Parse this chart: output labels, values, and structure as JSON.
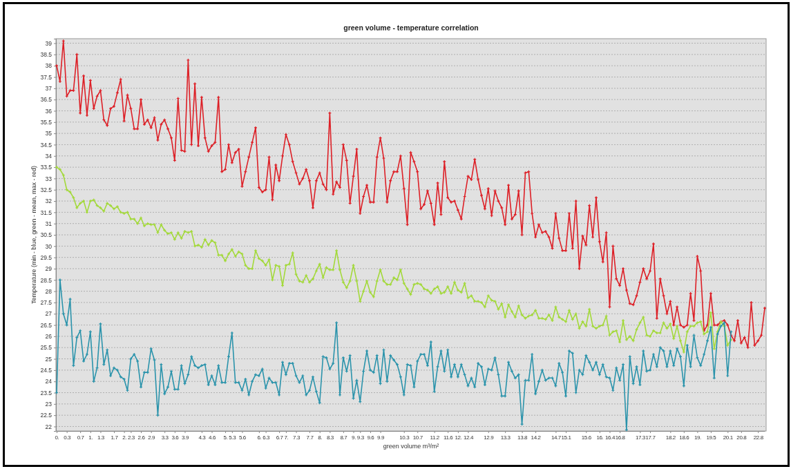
{
  "chart_data": {
    "type": "line",
    "title": "green volume - temperature correlation",
    "xlabel": "green volume m³/m²",
    "ylabel": "Temperature (min - blue, green - mean, max - red)",
    "categories": [
      "0.",
      null,
      null,
      "0.3",
      null,
      null,
      null,
      "0.7",
      null,
      null,
      "1.",
      null,
      null,
      "1.3",
      null,
      null,
      null,
      "1.7",
      null,
      null,
      "2.",
      null,
      "2.3",
      null,
      null,
      "2.6",
      null,
      null,
      "2.9",
      null,
      null,
      null,
      "3.3",
      null,
      null,
      "3.6",
      null,
      null,
      "3.9",
      null,
      null,
      null,
      null,
      "4.3",
      null,
      null,
      "4.6",
      null,
      null,
      null,
      "5.",
      null,
      "5.3",
      null,
      null,
      "5.6",
      null,
      null,
      null,
      null,
      "6.",
      null,
      "6.3",
      null,
      null,
      null,
      "6.7",
      null,
      "7.",
      null,
      null,
      "7.3",
      null,
      null,
      null,
      "7.7",
      null,
      null,
      "8.",
      null,
      null,
      "8.3",
      null,
      null,
      null,
      "8.7",
      null,
      null,
      "9.",
      null,
      "9.3",
      null,
      null,
      "9.6",
      null,
      null,
      "9.9",
      null,
      null,
      null,
      null,
      null,
      null,
      "10.3",
      null,
      null,
      null,
      "10.7",
      null,
      null,
      null,
      null,
      "11.2",
      null,
      null,
      null,
      "11.6",
      null,
      null,
      "12.",
      null,
      null,
      "12.4",
      null,
      null,
      null,
      null,
      null,
      "12.9",
      null,
      null,
      null,
      null,
      "13.3",
      null,
      null,
      null,
      null,
      "13.8",
      null,
      null,
      null,
      "14.2",
      null,
      null,
      null,
      null,
      null,
      "14.7",
      null,
      null,
      "15.1",
      null,
      null,
      null,
      null,
      null,
      "15.6",
      null,
      null,
      null,
      "16.",
      null,
      null,
      "16.4",
      null,
      null,
      "16.8",
      null,
      null,
      null,
      null,
      null,
      "17.3",
      null,
      null,
      "17.7",
      null,
      null,
      null,
      null,
      null,
      "18.2",
      null,
      null,
      null,
      "18.6",
      null,
      null,
      null,
      "19.",
      null,
      null,
      null,
      "19.5",
      null,
      null,
      null,
      null,
      "20.1",
      null,
      null,
      null,
      "20.8",
      null,
      null,
      null,
      null,
      "22.8",
      null,
      null
    ],
    "ylim": [
      21.8,
      39.2
    ],
    "yticks": [
      22,
      22.5,
      23,
      23.5,
      24,
      24.5,
      25,
      25.5,
      26,
      26.5,
      27,
      27.5,
      28,
      28.5,
      29,
      29.5,
      30,
      30.5,
      31,
      31.5,
      32,
      32.5,
      33,
      33.5,
      34,
      34.5,
      35,
      35.5,
      36,
      36.5,
      37,
      37.5,
      38,
      38.5,
      39
    ],
    "grid": "y",
    "marker": "cross",
    "line_style": "solid",
    "series": [
      {
        "color": "#dd1f26",
        "values": [
          38.0,
          37.3,
          39.1,
          36.65,
          36.9,
          36.9,
          38.5,
          35.9,
          37.55,
          35.8,
          37.35,
          36.1,
          36.65,
          36.9,
          35.6,
          35.35,
          36.1,
          36.2,
          36.8,
          37.4,
          35.55,
          36.7,
          36.1,
          35.2,
          35.2,
          36.5,
          35.4,
          35.6,
          35.25,
          35.7,
          34.7,
          35.4,
          35.6,
          35.2,
          34.8,
          33.8,
          36.55,
          34.25,
          34.2,
          38.25,
          34.5,
          37.2,
          34.45,
          36.6,
          34.8,
          34.2,
          34.45,
          34.6,
          36.6,
          33.3,
          33.4,
          34.5,
          33.7,
          34.15,
          34.3,
          32.65,
          33.3,
          33.95,
          34.6,
          35.25,
          32.6,
          32.4,
          32.5,
          33.95,
          32.05,
          33.6,
          32.9,
          34.0,
          34.95,
          34.5,
          33.75,
          33.25,
          32.75,
          33.0,
          33.4,
          32.9,
          31.7,
          32.9,
          33.25,
          32.75,
          32.5,
          35.9,
          32.3,
          32.85,
          32.6,
          34.5,
          33.8,
          31.9,
          33.1,
          34.3,
          31.45,
          32.2,
          32.7,
          31.95,
          31.95,
          33.95,
          34.8,
          33.9,
          31.95,
          32.9,
          33.3,
          33.3,
          34.0,
          32.55,
          30.95,
          34.15,
          33.75,
          33.3,
          31.65,
          31.85,
          32.45,
          31.9,
          30.95,
          32.8,
          31.4,
          33.75,
          32.15,
          31.95,
          32.0,
          31.6,
          31.2,
          32.2,
          33.1,
          32.95,
          33.85,
          32.95,
          32.25,
          31.65,
          32.55,
          31.35,
          32.45,
          32.0,
          31.7,
          30.95,
          32.7,
          31.2,
          31.4,
          32.45,
          30.5,
          33.25,
          33.3,
          31.45,
          30.4,
          30.95,
          30.6,
          30.65,
          30.4,
          29.9,
          31.45,
          30.35,
          29.8,
          29.8,
          31.45,
          29.9,
          32.0,
          29.0,
          30.45,
          30.05,
          31.8,
          30.4,
          32.15,
          30.2,
          29.3,
          30.6,
          27.3,
          30.0,
          28.55,
          28.25,
          29.0,
          28.05,
          27.45,
          27.4,
          27.8,
          28.4,
          29.0,
          28.55,
          28.9,
          30.1,
          26.8,
          28.55,
          27.8,
          27.0,
          27.55,
          26.5,
          27.3,
          26.5,
          26.4,
          26.5,
          27.9,
          26.7,
          29.55,
          28.9,
          26.25,
          26.5,
          27.9,
          26.5,
          26.5,
          26.65,
          26.7,
          26.5,
          26.05,
          25.8,
          26.7,
          25.7,
          25.95,
          25.5,
          27.5,
          25.6,
          25.8,
          26.05,
          27.25
        ]
      },
      {
        "color": "#a3d93a",
        "values": [
          33.5,
          33.4,
          33.15,
          32.5,
          32.4,
          32.15,
          31.7,
          31.9,
          32.0,
          31.5,
          32.0,
          32.05,
          31.8,
          31.7,
          31.55,
          31.9,
          31.8,
          31.65,
          31.75,
          31.5,
          31.45,
          31.5,
          31.2,
          31.2,
          31.0,
          31.25,
          30.9,
          31.0,
          30.95,
          30.95,
          30.6,
          30.95,
          30.7,
          30.55,
          30.6,
          30.3,
          30.6,
          30.35,
          30.65,
          30.6,
          30.65,
          30.0,
          30.05,
          29.95,
          30.3,
          30.05,
          30.25,
          30.15,
          29.6,
          29.6,
          29.35,
          29.65,
          29.85,
          29.55,
          29.75,
          29.65,
          29.15,
          29.0,
          29.0,
          29.8,
          29.45,
          29.35,
          29.15,
          29.4,
          28.5,
          29.15,
          29.1,
          28.25,
          29.15,
          29.2,
          29.7,
          28.75,
          28.45,
          28.4,
          28.7,
          28.4,
          28.55,
          28.9,
          29.2,
          28.6,
          29.05,
          28.95,
          28.95,
          29.8,
          28.95,
          28.4,
          28.15,
          28.45,
          29.15,
          28.45,
          27.55,
          28.0,
          28.45,
          27.95,
          27.75,
          28.45,
          28.95,
          28.45,
          28.3,
          28.3,
          28.6,
          28.5,
          28.95,
          28.35,
          28.1,
          27.85,
          28.3,
          28.35,
          28.3,
          28.1,
          28.05,
          27.9,
          28.1,
          28.2,
          27.9,
          27.95,
          28.2,
          27.9,
          28.4,
          28.05,
          27.95,
          28.35,
          27.7,
          27.8,
          27.55,
          27.55,
          27.5,
          27.3,
          27.8,
          27.6,
          27.55,
          27.2,
          27.45,
          26.85,
          27.4,
          27.1,
          26.85,
          27.35,
          26.95,
          26.8,
          26.9,
          26.95,
          27.15,
          26.8,
          26.8,
          26.75,
          26.95,
          26.7,
          27.3,
          26.85,
          26.75,
          26.65,
          27.15,
          26.75,
          27.0,
          26.35,
          26.65,
          26.45,
          27.2,
          26.45,
          26.35,
          26.45,
          26.5,
          26.9,
          26.05,
          26.2,
          26.25,
          25.75,
          26.7,
          25.85,
          26.0,
          25.8,
          26.3,
          26.6,
          26.85,
          26.05,
          26.0,
          26.25,
          26.15,
          26.15,
          26.6,
          26.35,
          26.55,
          25.9,
          26.45,
          25.8,
          25.3,
          26.2,
          26.45,
          26.45,
          26.6,
          26.65,
          26.1,
          26.2,
          27.05,
          25.45,
          26.2,
          26.65,
          26.45,
          25.6,
          25.85,
          null,
          null,
          null,
          null,
          null,
          null,
          null,
          null,
          null,
          null
        ]
      },
      {
        "color": "#2a93ab",
        "values": [
          23.5,
          28.5,
          27.0,
          26.5,
          27.65,
          24.7,
          25.95,
          26.25,
          24.9,
          25.2,
          26.2,
          24.0,
          24.6,
          26.55,
          24.75,
          25.4,
          24.25,
          24.6,
          24.5,
          24.2,
          24.1,
          23.6,
          25.0,
          25.2,
          24.9,
          23.75,
          24.4,
          24.4,
          25.45,
          24.95,
          22.5,
          24.75,
          23.45,
          23.75,
          24.45,
          23.65,
          23.65,
          24.7,
          23.9,
          24.3,
          25.1,
          24.7,
          24.6,
          24.7,
          24.75,
          23.85,
          24.25,
          23.85,
          24.7,
          23.95,
          23.95,
          25.1,
          26.15,
          23.95,
          23.95,
          23.6,
          24.1,
          23.4,
          24.0,
          24.3,
          24.25,
          24.55,
          23.7,
          24.15,
          23.95,
          23.95,
          23.4,
          24.85,
          24.3,
          24.8,
          24.8,
          24.25,
          23.95,
          24.25,
          23.4,
          23.6,
          24.2,
          23.55,
          23.05,
          25.1,
          25.05,
          24.55,
          24.8,
          26.6,
          23.4,
          25.05,
          24.45,
          25.15,
          23.25,
          24.05,
          23.1,
          24.45,
          25.35,
          24.5,
          24.4,
          25.15,
          23.9,
          25.4,
          24.0,
          25.15,
          24.95,
          24.75,
          24.2,
          23.4,
          24.75,
          24.7,
          23.75,
          24.9,
          25.2,
          25.2,
          24.7,
          25.75,
          23.55,
          24.65,
          25.35,
          24.45,
          25.4,
          24.2,
          24.75,
          24.2,
          24.75,
          24.3,
          23.8,
          24.15,
          23.75,
          24.8,
          24.65,
          23.85,
          24.55,
          24.5,
          25.05,
          24.3,
          23.35,
          23.35,
          24.85,
          24.45,
          24.15,
          24.3,
          22.1,
          24.05,
          24.05,
          25.2,
          23.45,
          24.0,
          24.5,
          24.05,
          24.15,
          24.15,
          23.8,
          24.8,
          24.4,
          23.35,
          25.35,
          25.25,
          23.5,
          24.5,
          24.3,
          25.15,
          24.85,
          24.5,
          24.85,
          24.3,
          24.75,
          24.2,
          24.15,
          23.6,
          24.6,
          24.05,
          24.75,
          21.85,
          25.1,
          23.9,
          24.65,
          23.85,
          25.35,
          24.45,
          24.5,
          25.2,
          24.65,
          25.5,
          25.35,
          24.65,
          25.35,
          24.7,
          25.45,
          25.1,
          23.8,
          25.6,
          24.65,
          26.05,
          25.05,
          24.7,
          25.2,
          25.8,
          26.4,
          24.15,
          26.1,
          26.45,
          26.6,
          24.25,
          26.2,
          null,
          null,
          null,
          null,
          null,
          null,
          null,
          null,
          null,
          null
        ]
      }
    ]
  }
}
